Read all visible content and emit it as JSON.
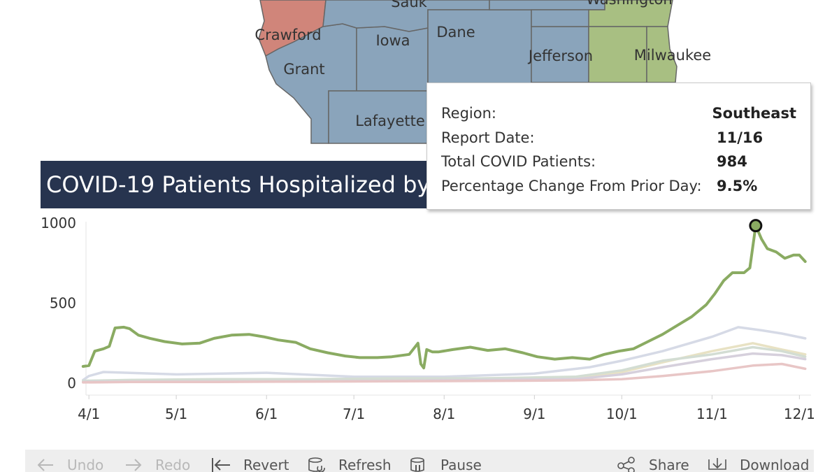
{
  "map": {
    "counties": {
      "sauk": "Sauk",
      "washington": "Washington",
      "crawford": "Crawford",
      "iowa": "Iowa",
      "dane": "Dane",
      "jefferson": "Jefferson",
      "milwaukee": "Milwaukee",
      "grant": "Grant",
      "lafayette": "Lafayette"
    },
    "colors": {
      "southwest": "#8aa4bb",
      "crawford_region": "#d0857a",
      "southeast": "#a8bf82"
    }
  },
  "section_title": "COVID-19 Patients Hospitalized by",
  "tooltip": {
    "rows": [
      {
        "label": "Region:",
        "value": "Southeast"
      },
      {
        "label": "Report Date:",
        "value": "11/16"
      },
      {
        "label": "Total COVID Patients:",
        "value": "984"
      },
      {
        "label": "Percentage Change From Prior Day:",
        "value": "9.5%"
      }
    ]
  },
  "chart_data": {
    "type": "line",
    "title": "COVID-19 Patients Hospitalized by",
    "xlabel": "",
    "ylabel": "",
    "x_ticks": [
      "4/1",
      "5/1",
      "6/1",
      "7/1",
      "8/1",
      "9/1",
      "10/1",
      "11/1",
      "12/1"
    ],
    "y_ticks": [
      "1000",
      "500",
      "0"
    ],
    "x_range_day_of_2020": [
      91,
      340
    ],
    "ylim": [
      0,
      1000
    ],
    "grid": false,
    "highlighted_point": {
      "date": "11/16",
      "value": 984,
      "series": "Southeast"
    },
    "series": [
      {
        "name": "Southeast",
        "color": "#8aab62",
        "x": [
          "3/30",
          "4/1",
          "4/3",
          "4/6",
          "4/8",
          "4/10",
          "4/13",
          "4/15",
          "4/18",
          "4/22",
          "4/27",
          "5/3",
          "5/9",
          "5/14",
          "5/20",
          "5/26",
          "5/31",
          "6/5",
          "6/11",
          "6/16",
          "6/22",
          "6/28",
          "7/3",
          "7/9",
          "7/14",
          "7/20",
          "7/23",
          "7/24",
          "7/25",
          "7/26",
          "7/28",
          "7/30",
          "8/4",
          "8/10",
          "8/16",
          "8/22",
          "8/28",
          "9/2",
          "9/8",
          "9/14",
          "9/20",
          "9/25",
          "9/30",
          "10/5",
          "10/10",
          "10/15",
          "10/20",
          "10/25",
          "10/30",
          "11/2",
          "11/5",
          "11/8",
          "11/10",
          "11/12",
          "11/14",
          "11/16",
          "11/18",
          "11/20",
          "11/23",
          "11/26",
          "11/29",
          "12/1",
          "12/3"
        ],
        "y": [
          105,
          110,
          200,
          215,
          230,
          345,
          350,
          340,
          300,
          280,
          260,
          245,
          250,
          280,
          300,
          305,
          290,
          270,
          255,
          215,
          190,
          170,
          160,
          160,
          165,
          180,
          250,
          120,
          95,
          210,
          195,
          195,
          210,
          225,
          205,
          215,
          190,
          165,
          150,
          160,
          150,
          180,
          200,
          215,
          260,
          305,
          360,
          415,
          490,
          560,
          640,
          690,
          690,
          690,
          720,
          984,
          900,
          840,
          820,
          780,
          800,
          800,
          760
        ]
      },
      {
        "name": "",
        "color": "#d6dae6",
        "x": [
          "3/30",
          "4/1",
          "4/6",
          "5/1",
          "6/1",
          "7/1",
          "8/1",
          "9/1",
          "9/20",
          "10/1",
          "10/15",
          "11/1",
          "11/10",
          "11/18",
          "11/25",
          "12/3"
        ],
        "y": [
          20,
          45,
          70,
          55,
          65,
          40,
          40,
          60,
          100,
          140,
          200,
          290,
          350,
          330,
          310,
          280
        ]
      },
      {
        "name": "",
        "color": "#e8e2c4",
        "x": [
          "3/30",
          "4/15",
          "5/15",
          "6/15",
          "7/15",
          "8/15",
          "9/15",
          "10/1",
          "10/15",
          "11/1",
          "11/15",
          "11/25",
          "12/3"
        ],
        "y": [
          10,
          15,
          12,
          15,
          20,
          30,
          35,
          70,
          130,
          200,
          250,
          210,
          180
        ]
      },
      {
        "name": "",
        "color": "#d3ddd3",
        "x": [
          "3/30",
          "4/15",
          "5/15",
          "6/15",
          "7/15",
          "8/15",
          "9/15",
          "10/1",
          "10/15",
          "11/1",
          "11/15",
          "11/25",
          "12/3"
        ],
        "y": [
          15,
          20,
          25,
          25,
          30,
          30,
          40,
          80,
          140,
          180,
          225,
          200,
          165
        ]
      },
      {
        "name": "",
        "color": "#d6d0dc",
        "x": [
          "3/30",
          "4/15",
          "5/15",
          "6/15",
          "7/15",
          "8/15",
          "9/15",
          "10/1",
          "10/15",
          "11/1",
          "11/15",
          "11/25",
          "12/3"
        ],
        "y": [
          8,
          10,
          10,
          12,
          15,
          20,
          25,
          55,
          100,
          150,
          185,
          175,
          150
        ]
      },
      {
        "name": "",
        "color": "#e8c6c6",
        "x": [
          "3/30",
          "4/15",
          "5/15",
          "6/15",
          "7/15",
          "8/15",
          "9/15",
          "10/1",
          "10/15",
          "11/1",
          "11/15",
          "11/25",
          "12/3"
        ],
        "y": [
          5,
          8,
          8,
          10,
          12,
          14,
          18,
          25,
          45,
          75,
          110,
          120,
          90
        ]
      }
    ]
  },
  "toolbar": {
    "undo": "Undo",
    "redo": "Redo",
    "revert": "Revert",
    "refresh": "Refresh",
    "pause": "Pause",
    "share": "Share",
    "download": "Download"
  }
}
